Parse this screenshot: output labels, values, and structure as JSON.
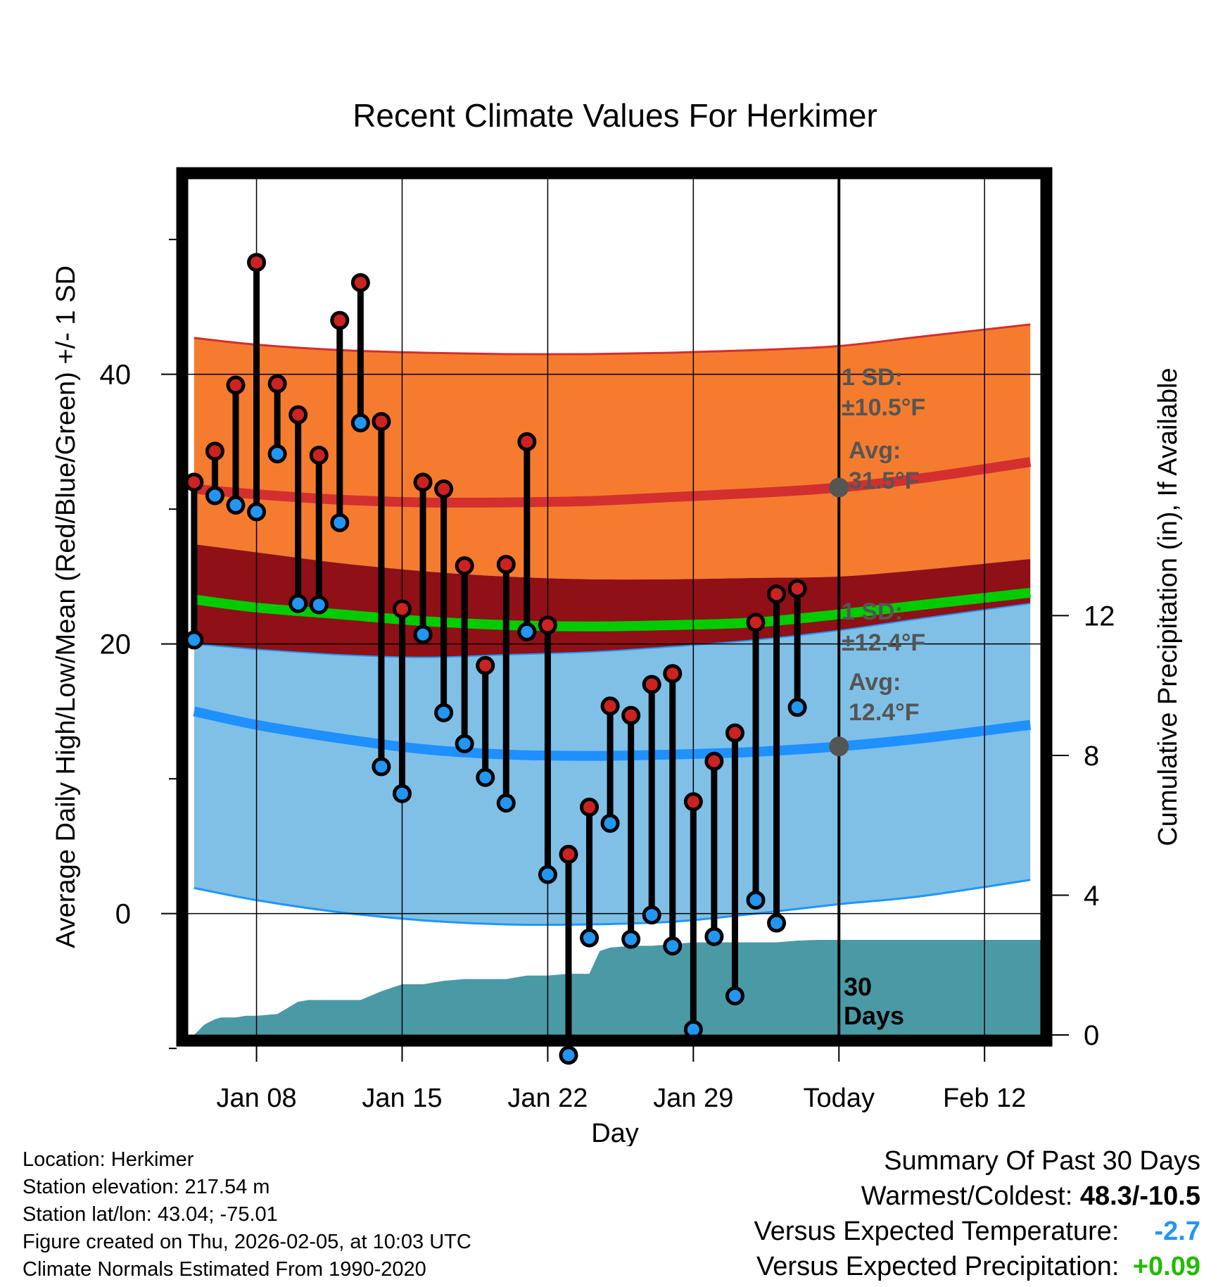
{
  "chart_data": {
    "type": "line",
    "title": "Recent Climate Values For Herkimer",
    "xlabel": "Day",
    "ylabel": "Average Daily High/Low/Mean (Red/Blue/Green) +/- 1 SD",
    "y2label": "Cumulative Precipitation (in), If Available",
    "xlim": [
      4.7,
      45.7
    ],
    "ylim": [
      -9,
      54.5
    ],
    "y2lim": [
      0,
      24.5
    ],
    "x_ticks": [
      {
        "x": 8,
        "label": "Jan 08"
      },
      {
        "x": 15,
        "label": "Jan 15"
      },
      {
        "x": 22,
        "label": "Jan 22"
      },
      {
        "x": 29,
        "label": "Jan 29"
      },
      {
        "x": 36,
        "label": "Today"
      },
      {
        "x": 43,
        "label": "Feb 12"
      }
    ],
    "y_ticks": [
      {
        "y": 0,
        "label": "0"
      },
      {
        "y": 20,
        "label": "20"
      },
      {
        "y": 40,
        "label": "40"
      }
    ],
    "y_minor_ticks": [
      -10,
      10,
      30,
      50
    ],
    "y2_ticks": [
      {
        "y": 0,
        "label": "0"
      },
      {
        "y": 4,
        "label": "4"
      },
      {
        "y": 8,
        "label": "8"
      },
      {
        "y": 12,
        "label": "12"
      }
    ],
    "x_grid": [
      8,
      15,
      22,
      29,
      43
    ],
    "y_grid": [
      0,
      20,
      40
    ],
    "today_x": 36,
    "normals_x": [
      5,
      8,
      12,
      16,
      20,
      24,
      28,
      32,
      36,
      40,
      45.2
    ],
    "normal_high": [
      31.5,
      31.1,
      30.7,
      30.5,
      30.5,
      30.6,
      30.9,
      31.2,
      31.6,
      32.3,
      33.5
    ],
    "normal_high_upper": [
      42.7,
      42.2,
      41.8,
      41.6,
      41.5,
      41.5,
      41.6,
      41.8,
      42.1,
      42.8,
      43.7
    ],
    "normal_high_lower": [
      27.4,
      26.8,
      26.0,
      25.4,
      25.0,
      24.8,
      24.8,
      24.9,
      25.0,
      25.5,
      26.3
    ],
    "normal_low": [
      15.0,
      14.0,
      13.0,
      12.2,
      11.8,
      11.7,
      11.8,
      12.0,
      12.4,
      13.0,
      14.0
    ],
    "normal_low_upper": [
      20.0,
      19.6,
      19.2,
      19.0,
      19.2,
      19.4,
      19.8,
      20.3,
      21.0,
      21.9,
      23.0
    ],
    "normal_low_lower": [
      1.9,
      1.0,
      0.1,
      -0.5,
      -0.8,
      -0.8,
      -0.6,
      0.0,
      0.7,
      1.3,
      2.5
    ],
    "normal_mean": [
      23.3,
      22.7,
      22.2,
      21.7,
      21.4,
      21.3,
      21.4,
      21.6,
      22.2,
      22.9,
      23.8
    ],
    "series": [
      {
        "name": "High",
        "color": "#cc2222",
        "x": [
          5,
          6,
          7,
          8,
          9,
          10,
          11,
          12,
          13,
          14,
          15,
          16,
          17,
          18,
          19,
          20,
          21,
          22,
          23,
          24,
          25,
          26,
          27,
          28,
          29,
          30,
          31,
          32,
          33,
          34,
          35
        ],
        "values": [
          32.0,
          34.3,
          39.2,
          48.3,
          39.3,
          37.0,
          34.0,
          44.0,
          46.8,
          36.5,
          22.6,
          32.0,
          31.5,
          25.8,
          18.4,
          25.9,
          35.0,
          21.4,
          4.4,
          7.9,
          15.4,
          14.7,
          17.0,
          17.8,
          8.3,
          11.3,
          13.4,
          21.6,
          23.7,
          24.1,
          null
        ]
      },
      {
        "name": "Low",
        "color": "#2196f3",
        "x": [
          5,
          6,
          7,
          8,
          9,
          10,
          11,
          12,
          13,
          14,
          15,
          16,
          17,
          18,
          19,
          20,
          21,
          22,
          23,
          24,
          25,
          26,
          27,
          28,
          29,
          30,
          31,
          32,
          33,
          34,
          35
        ],
        "values": [
          20.3,
          31.0,
          30.3,
          29.8,
          34.1,
          23.0,
          22.9,
          29.0,
          36.4,
          10.9,
          8.9,
          20.7,
          14.9,
          12.6,
          10.1,
          8.2,
          20.9,
          2.9,
          -10.5,
          -1.8,
          6.7,
          -1.9,
          -0.1,
          -2.4,
          -8.6,
          -1.7,
          -6.1,
          1.0,
          -0.7,
          15.3,
          null
        ]
      }
    ],
    "precip": {
      "x": [
        5,
        5.5,
        6,
        6.3,
        7,
        7.5,
        8,
        9,
        10,
        10.5,
        11,
        12,
        13,
        14,
        15,
        16,
        17,
        18,
        19,
        20,
        21,
        22,
        23,
        24,
        24.5,
        25,
        26,
        27,
        28,
        29,
        30,
        31,
        32,
        33,
        34,
        35,
        36,
        45.7
      ],
      "values": [
        0,
        0.3,
        0.45,
        0.5,
        0.5,
        0.55,
        0.55,
        0.6,
        0.95,
        1.0,
        1.0,
        1.0,
        1.0,
        1.25,
        1.45,
        1.45,
        1.55,
        1.6,
        1.6,
        1.6,
        1.7,
        1.7,
        1.75,
        1.75,
        2.4,
        2.5,
        2.55,
        2.55,
        2.6,
        2.65,
        2.65,
        2.65,
        2.65,
        2.65,
        2.7,
        2.72,
        2.72,
        2.72
      ]
    },
    "annotations": {
      "high_sd": "1 SD:",
      "high_sd_value": "±10.5°F",
      "high_avg": "Avg:",
      "high_avg_value": "31.5°F",
      "low_sd": "1 SD:",
      "low_sd_value": "±12.4°F",
      "low_avg": "Avg:",
      "low_avg_value": "12.4°F",
      "days_count": "30",
      "days_label": "Days"
    },
    "colors": {
      "high_band": "#f57c2e",
      "high_line": "#d32f2f",
      "dark_band": "#8f1016",
      "mean_line": "#00cc00",
      "low_band": "#80c0e6",
      "low_line": "#1e90ff",
      "low_edge": "#2196f3",
      "precip": "#4a9aa5",
      "high_marker": "#cc2222",
      "low_marker": "#2196f3"
    }
  },
  "footer": {
    "location": "Location: Herkimer",
    "elevation": "Station elevation: 217.54 m",
    "latlon": "Station lat/lon: 43.04; -75.01",
    "created": "Figure created on Thu, 2026-02-05, at 10:03 UTC",
    "normals": "Climate Normals Estimated From 1990-2020"
  },
  "summary": {
    "title": "Summary Of Past 30 Days",
    "warm_cold_label": "Warmest/Coldest:",
    "warm_cold_value": "48.3/-10.5",
    "temp_label": "Versus Expected Temperature:",
    "temp_value": "-2.7",
    "temp_color": "#2196f3",
    "precip_label": "Versus Expected Precipitation:",
    "precip_value": "+0.09",
    "precip_color": "#22bb00"
  }
}
